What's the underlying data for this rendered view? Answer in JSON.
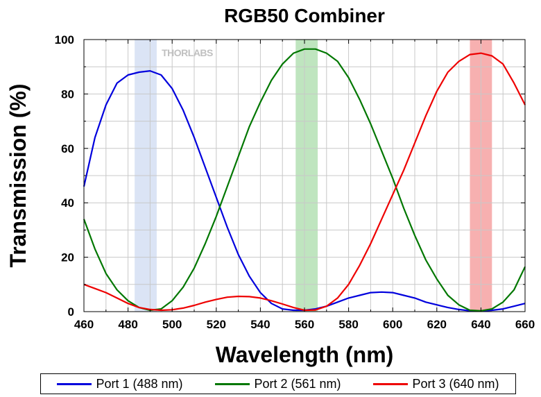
{
  "chart_data": {
    "type": "line",
    "title": "RGB50 Combiner",
    "xlabel": "Wavelength (nm)",
    "ylabel": "Transmission (%)",
    "xlim": [
      460,
      660
    ],
    "ylim": [
      0,
      100
    ],
    "xticks": [
      460,
      480,
      500,
      520,
      540,
      560,
      580,
      600,
      620,
      640,
      660
    ],
    "yticks": [
      0,
      20,
      40,
      60,
      80,
      100
    ],
    "grid": true,
    "watermark": "THORLABS",
    "legend_position": "bottom",
    "bands": [
      {
        "name": "blue-band",
        "x0": 483,
        "x1": 493,
        "color": "#dbe4f5"
      },
      {
        "name": "green-band",
        "x0": 556,
        "x1": 566,
        "color": "#bfe5bf"
      },
      {
        "name": "red-band",
        "x0": 635,
        "x1": 645,
        "color": "#f7b0b0"
      }
    ],
    "series": [
      {
        "name": "Port 1 (488 nm)",
        "color": "#0000dd",
        "points": [
          [
            460,
            46
          ],
          [
            465,
            64
          ],
          [
            470,
            76
          ],
          [
            475,
            84
          ],
          [
            480,
            87
          ],
          [
            485,
            88
          ],
          [
            490,
            88.5
          ],
          [
            495,
            87
          ],
          [
            500,
            82
          ],
          [
            505,
            74
          ],
          [
            510,
            64
          ],
          [
            515,
            53
          ],
          [
            520,
            42
          ],
          [
            525,
            31
          ],
          [
            530,
            21
          ],
          [
            535,
            13
          ],
          [
            540,
            7
          ],
          [
            545,
            3
          ],
          [
            550,
            1
          ],
          [
            555,
            0.5
          ],
          [
            560,
            0.5
          ],
          [
            565,
            1
          ],
          [
            570,
            2
          ],
          [
            575,
            3.5
          ],
          [
            580,
            5
          ],
          [
            585,
            6
          ],
          [
            590,
            7
          ],
          [
            595,
            7.2
          ],
          [
            600,
            7
          ],
          [
            605,
            6
          ],
          [
            610,
            5
          ],
          [
            615,
            3.5
          ],
          [
            620,
            2.5
          ],
          [
            625,
            1.5
          ],
          [
            630,
            0.8
          ],
          [
            635,
            0.3
          ],
          [
            640,
            0.2
          ],
          [
            645,
            0.5
          ],
          [
            650,
            1
          ],
          [
            655,
            2
          ],
          [
            660,
            3
          ]
        ]
      },
      {
        "name": "Port 2 (561 nm)",
        "color": "#007700",
        "points": [
          [
            460,
            34
          ],
          [
            465,
            23
          ],
          [
            470,
            14
          ],
          [
            475,
            8
          ],
          [
            480,
            4
          ],
          [
            485,
            1.5
          ],
          [
            490,
            0.5
          ],
          [
            495,
            1
          ],
          [
            500,
            4
          ],
          [
            505,
            9
          ],
          [
            510,
            16
          ],
          [
            515,
            25
          ],
          [
            520,
            35
          ],
          [
            525,
            46
          ],
          [
            530,
            57
          ],
          [
            535,
            68
          ],
          [
            540,
            77
          ],
          [
            545,
            85
          ],
          [
            550,
            91
          ],
          [
            555,
            95
          ],
          [
            560,
            96.5
          ],
          [
            565,
            96.5
          ],
          [
            570,
            95
          ],
          [
            575,
            92
          ],
          [
            580,
            86
          ],
          [
            585,
            78
          ],
          [
            590,
            69
          ],
          [
            595,
            59
          ],
          [
            600,
            49
          ],
          [
            605,
            38
          ],
          [
            610,
            28
          ],
          [
            615,
            19
          ],
          [
            620,
            12
          ],
          [
            625,
            6
          ],
          [
            630,
            2.5
          ],
          [
            635,
            0.5
          ],
          [
            640,
            0.3
          ],
          [
            645,
            1
          ],
          [
            650,
            3.5
          ],
          [
            655,
            8
          ],
          [
            660,
            16.5
          ]
        ]
      },
      {
        "name": "Port 3 (640 nm)",
        "color": "#ee0000",
        "points": [
          [
            460,
            10
          ],
          [
            465,
            8.5
          ],
          [
            470,
            7
          ],
          [
            475,
            5
          ],
          [
            480,
            3
          ],
          [
            485,
            1.5
          ],
          [
            490,
            0.8
          ],
          [
            495,
            0.5
          ],
          [
            500,
            0.7
          ],
          [
            505,
            1.3
          ],
          [
            510,
            2.3
          ],
          [
            515,
            3.5
          ],
          [
            520,
            4.5
          ],
          [
            525,
            5.3
          ],
          [
            530,
            5.6
          ],
          [
            535,
            5.5
          ],
          [
            540,
            5
          ],
          [
            545,
            4
          ],
          [
            550,
            2.8
          ],
          [
            555,
            1.5
          ],
          [
            560,
            0.5
          ],
          [
            565,
            0.6
          ],
          [
            570,
            2
          ],
          [
            575,
            5
          ],
          [
            580,
            10
          ],
          [
            585,
            17
          ],
          [
            590,
            25
          ],
          [
            595,
            34
          ],
          [
            600,
            43
          ],
          [
            605,
            52
          ],
          [
            610,
            62
          ],
          [
            615,
            72
          ],
          [
            620,
            81
          ],
          [
            625,
            88
          ],
          [
            630,
            92
          ],
          [
            635,
            94.5
          ],
          [
            640,
            95
          ],
          [
            645,
            94
          ],
          [
            650,
            91
          ],
          [
            655,
            84
          ],
          [
            660,
            76
          ]
        ]
      }
    ]
  }
}
